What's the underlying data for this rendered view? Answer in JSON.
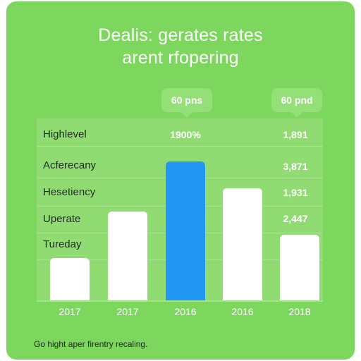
{
  "header": {
    "title_line1": "Dealis: gerates rates",
    "title_line2": "arent rfopering"
  },
  "callouts": [
    "60 pns",
    "60 pnd"
  ],
  "footnote": "Go hight aper firentry recaling.",
  "colors": {
    "card": "#7dd65e",
    "bar": "#ffffff",
    "highlight_bar": "#2196f3"
  },
  "chart_data": {
    "type": "bar",
    "categories": [
      "2017",
      "2017",
      "2016",
      "2016",
      "2018"
    ],
    "values": [
      1.1,
      2.3,
      3.6,
      2.9,
      1.7
    ],
    "highlight_index": 2,
    "ylim": [
      0,
      4.2
    ],
    "row_labels": [
      "Highlevel",
      "Acferecany",
      "Hesetiency",
      "Uperate",
      "Tureday"
    ],
    "value_labels": [
      "1900%",
      "1,891",
      "3,871",
      "1,931",
      "2,447"
    ],
    "grid": true
  }
}
